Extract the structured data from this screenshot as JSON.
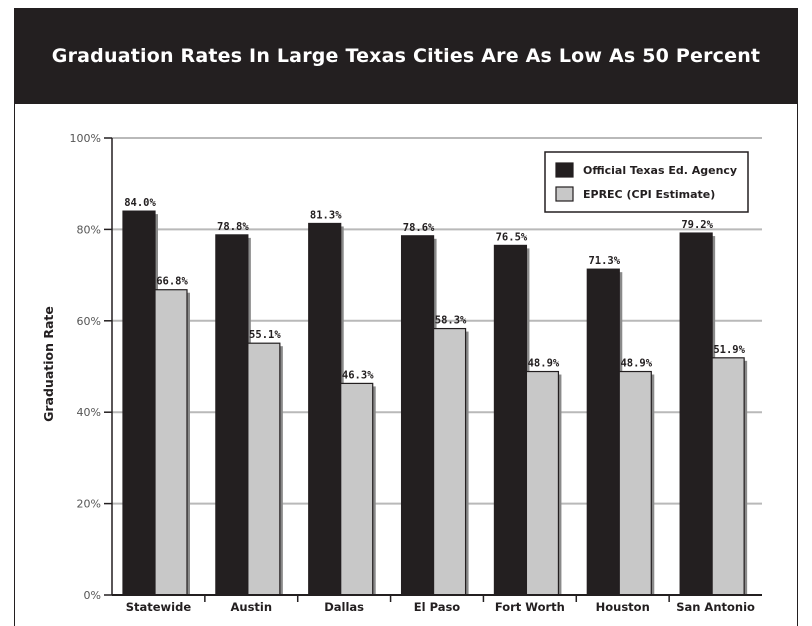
{
  "chart_data": {
    "type": "bar",
    "title": "Graduation Rates In Large Texas Cities Are As Low As 50 Percent",
    "ylabel": "Graduation Rate",
    "xlabel": "",
    "ylim": [
      0,
      100
    ],
    "yticks": [
      "0%",
      "20%",
      "40%",
      "60%",
      "80%",
      "100%"
    ],
    "ytick_values": [
      0,
      20,
      40,
      60,
      80,
      100
    ],
    "categories": [
      "Statewide",
      "Austin",
      "Dallas",
      "El Paso",
      "Fort Worth",
      "Houston",
      "San Antonio"
    ],
    "series": [
      {
        "name": "Official Texas Ed. Agency",
        "color": "#231f20",
        "values": [
          84.0,
          78.8,
          81.3,
          78.6,
          76.5,
          71.3,
          79.2
        ],
        "labels": [
          "84.0%",
          "78.8%",
          "81.3%",
          "78.6%",
          "76.5%",
          "71.3%",
          "79.2%"
        ]
      },
      {
        "name": "EPREC (CPI Estimate)",
        "color": "#c8c8c8",
        "values": [
          66.8,
          55.1,
          46.3,
          58.3,
          48.9,
          48.9,
          51.9
        ],
        "labels": [
          "66.8%",
          "55.1%",
          "46.3%",
          "58.3%",
          "48.9%",
          "48.9%",
          "51.9%"
        ]
      }
    ],
    "grid": true,
    "legend": "top-right"
  }
}
